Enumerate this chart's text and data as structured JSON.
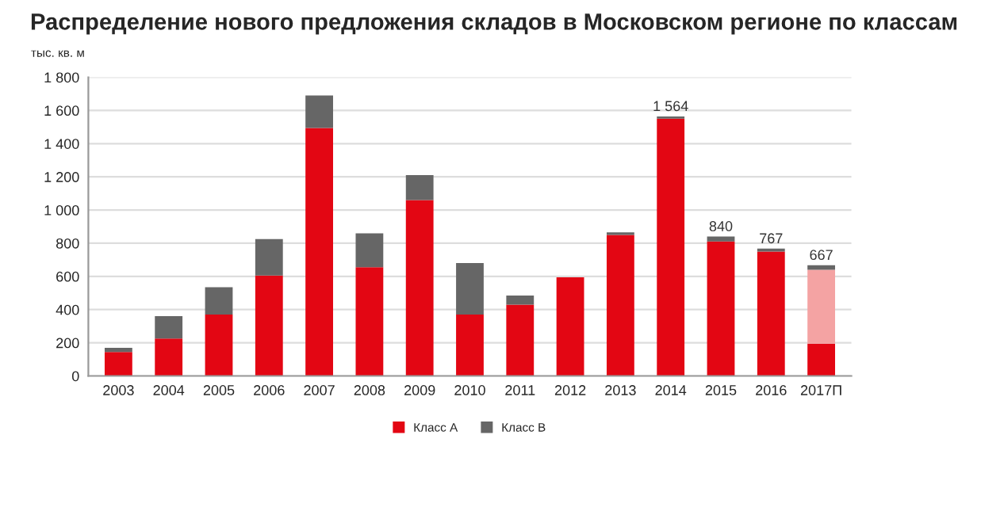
{
  "chart_data": {
    "type": "bar",
    "stacked": true,
    "title": "Распределение нового предложения складов в Московском регионе по классам",
    "ylabel": "тыс. кв. м",
    "categories": [
      "2003",
      "2004",
      "2005",
      "2006",
      "2007",
      "2008",
      "2009",
      "2010",
      "2011",
      "2012",
      "2013",
      "2014",
      "2015",
      "2016",
      "2017П"
    ],
    "series": [
      {
        "name": "Класс А",
        "color": "#e30613",
        "values": [
          145,
          225,
          370,
          605,
          1495,
          655,
          1060,
          370,
          430,
          595,
          850,
          1550,
          810,
          750,
          195
        ]
      },
      {
        "color": "#f4a3a3",
        "values": [
          null,
          null,
          null,
          null,
          null,
          null,
          null,
          null,
          null,
          null,
          null,
          null,
          null,
          null,
          445
        ]
      },
      {
        "name": "Класс В",
        "color": "#666666",
        "values": [
          25,
          135,
          165,
          220,
          195,
          205,
          150,
          310,
          55,
          null,
          15,
          14,
          30,
          17,
          27
        ]
      }
    ],
    "totals": [
      null,
      null,
      null,
      null,
      null,
      null,
      null,
      null,
      null,
      null,
      null,
      "1 564",
      "840",
      "767",
      "667"
    ],
    "ylim": [
      0,
      1800
    ],
    "yticks": [
      0,
      200,
      400,
      600,
      800,
      {
        "value": 1000,
        "label": "1 000"
      },
      {
        "value": 1200,
        "label": "1 200"
      },
      {
        "value": 1400,
        "label": "1 400"
      },
      {
        "value": 1600,
        "label": "1 600"
      },
      {
        "value": 1800,
        "label": "1 800"
      }
    ],
    "grid": "y",
    "legend": "bottom"
  }
}
